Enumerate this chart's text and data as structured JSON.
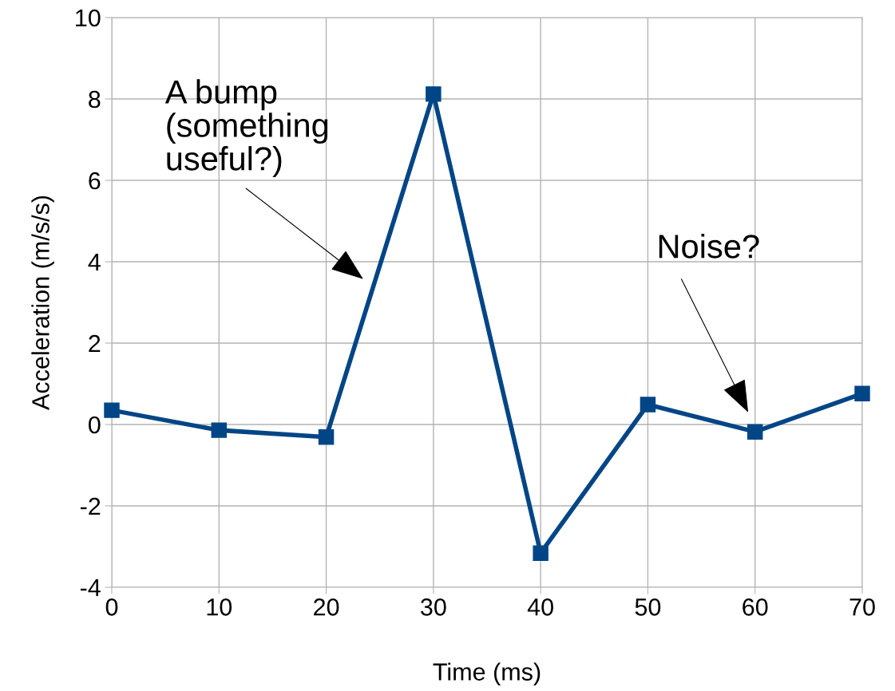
{
  "chart_data": {
    "type": "line",
    "xlabel": "Time (ms)",
    "ylabel": "Acceleration (m/s/s)",
    "x": [
      0,
      10,
      20,
      30,
      40,
      50,
      60,
      70
    ],
    "series": [
      {
        "color": "#004586",
        "values": [
          0.35,
          -0.14,
          -0.31,
          8.12,
          -3.16,
          0.49,
          -0.18,
          0.76
        ]
      }
    ],
    "xlim": [
      0,
      70
    ],
    "xticks": [
      0,
      10,
      20,
      30,
      40,
      50,
      60,
      70
    ],
    "ylim": [
      -4,
      10
    ],
    "yticks": [
      -4,
      -2,
      0,
      2,
      4,
      6,
      8,
      10
    ],
    "grid": true,
    "marker": "square",
    "line_style": "solid",
    "annotations": [
      "A bump\n(something\nuseful?)",
      "Noise?"
    ]
  }
}
